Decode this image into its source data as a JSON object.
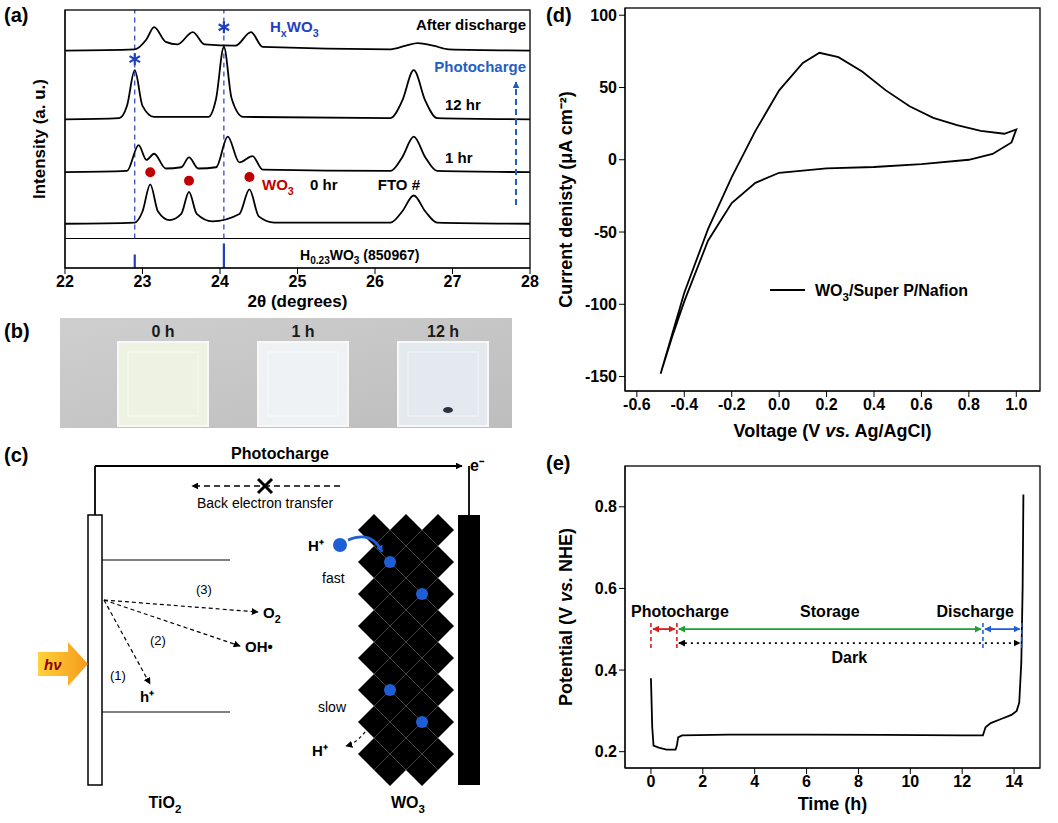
{
  "chart_data": [
    {
      "panel": "(a)",
      "type": "line",
      "x_label": "2θ (degrees)",
      "y_label": "Intensity (a. u.)",
      "xlim": [
        22,
        28
      ],
      "xticks": [
        22,
        23,
        24,
        25,
        26,
        27,
        28
      ],
      "ylim": [
        0,
        10.5
      ],
      "tick_labels": "x",
      "series": [
        {
          "name": "After discharge",
          "color": "#000000",
          "x": [
            22.0,
            22.9,
            23.05,
            23.15,
            23.3,
            23.45,
            23.65,
            23.8,
            24.2,
            24.4,
            24.55,
            26.2,
            26.4,
            26.55,
            26.75,
            26.95,
            28.0
          ],
          "values": [
            8.85,
            8.9,
            9.3,
            9.8,
            9.2,
            9.1,
            9.6,
            9.1,
            9.05,
            9.6,
            9.0,
            8.9,
            9.05,
            9.15,
            9.05,
            8.9,
            8.85
          ]
        },
        {
          "name": "12 hr",
          "color": "#000000",
          "x": [
            22.0,
            22.7,
            22.8,
            22.9,
            23.0,
            23.15,
            23.85,
            23.95,
            24.05,
            24.15,
            24.3,
            26.2,
            26.35,
            26.5,
            26.65,
            26.8,
            28.0
          ],
          "values": [
            6.05,
            6.1,
            6.6,
            8.05,
            6.6,
            6.15,
            6.15,
            6.9,
            9.0,
            6.9,
            6.15,
            6.1,
            6.8,
            8.05,
            6.8,
            6.1,
            6.05
          ]
        },
        {
          "name": "1 hr",
          "color": "#000000",
          "x": [
            22.0,
            22.8,
            22.95,
            23.05,
            23.15,
            23.3,
            23.5,
            23.6,
            23.72,
            23.95,
            24.1,
            24.25,
            24.42,
            24.55,
            26.2,
            26.35,
            26.5,
            26.65,
            26.8,
            28.0
          ],
          "values": [
            3.9,
            3.95,
            5.0,
            4.4,
            4.65,
            4.05,
            4.1,
            4.5,
            4.05,
            4.1,
            5.35,
            4.3,
            4.55,
            4.0,
            3.95,
            4.5,
            5.35,
            4.5,
            3.95,
            3.9
          ]
        },
        {
          "name": "0 hr",
          "color": "#000000",
          "x": [
            22.0,
            22.9,
            23.0,
            23.1,
            23.2,
            23.35,
            23.5,
            23.6,
            23.7,
            23.9,
            24.25,
            24.38,
            24.5,
            24.7,
            26.2,
            26.35,
            26.5,
            26.65,
            26.8,
            28.0
          ],
          "values": [
            1.8,
            1.85,
            2.3,
            3.4,
            2.3,
            1.95,
            2.2,
            3.1,
            2.2,
            1.9,
            2.2,
            3.2,
            2.1,
            1.85,
            1.85,
            2.3,
            2.95,
            2.3,
            1.85,
            1.8
          ]
        }
      ],
      "markers": [
        {
          "name": "WO3",
          "color": "#c00000",
          "marker": "circle",
          "x": [
            23.1,
            23.6,
            24.38
          ],
          "values": [
            3.9,
            3.55,
            3.7
          ]
        },
        {
          "name": "HxWO3",
          "color": "#1f3fbf",
          "marker": "asterisk",
          "x": [
            22.9,
            24.05
          ],
          "values": [
            8.5,
            9.8
          ]
        }
      ],
      "reference": {
        "name": "H0.23WO3 (850967)",
        "color": "#1f3fbf",
        "x": [
          22.9,
          24.05
        ],
        "values": [
          0.55,
          1.0
        ]
      },
      "separator": 1.2,
      "annotations": [
        {
          "text": "FTO #"
        },
        {
          "text": "Photocharge",
          "color": "#1f5fbf"
        }
      ]
    },
    {
      "panel": "(d)",
      "type": "line",
      "x_label": "Voltage (V vs. Ag/AgCl)",
      "y_label": "Current denisty (μA cm⁻²)",
      "xlim": [
        -0.65,
        1.1
      ],
      "xticks": [
        -0.6,
        -0.4,
        -0.2,
        {
          "value": 0,
          "label": "0.0"
        },
        0.2,
        0.4,
        0.6,
        0.8,
        {
          "value": 1,
          "label": "1.0"
        }
      ],
      "ylim": [
        -160,
        105
      ],
      "yticks": [
        -150,
        -100,
        -50,
        0,
        50,
        100
      ],
      "legend": "lower right",
      "series": [
        {
          "name": "WO3/Super P/Nafion",
          "color": "#000000",
          "x": [
            -0.5,
            -0.45,
            -0.4,
            -0.3,
            -0.2,
            -0.1,
            0.0,
            0.1,
            0.17,
            0.25,
            0.35,
            0.45,
            0.55,
            0.65,
            0.75,
            0.85,
            0.95,
            1.0,
            0.98,
            0.9,
            0.8,
            0.6,
            0.4,
            0.2,
            0.0,
            -0.1,
            -0.2,
            -0.3,
            -0.4,
            -0.45,
            -0.5
          ],
          "values": [
            -148,
            -120,
            -92,
            -48,
            -12,
            20,
            48,
            67,
            74,
            71,
            61,
            48,
            37,
            29,
            24,
            20,
            18,
            21,
            12,
            4,
            0,
            -3,
            -5,
            -6,
            -9,
            -16,
            -30,
            -56,
            -98,
            -122,
            -148
          ]
        }
      ]
    },
    {
      "panel": "(e)",
      "type": "line",
      "x_label": "Time (h)",
      "y_label": "Potential (V vs. NHE)",
      "xlim": [
        -1,
        15
      ],
      "xticks": [
        0,
        2,
        4,
        6,
        8,
        10,
        12,
        14
      ],
      "ylim": [
        0.16,
        0.9
      ],
      "yticks": [
        0.2,
        0.4,
        0.6,
        0.8
      ],
      "series": [
        {
          "color": "#000000",
          "x": [
            0,
            0.05,
            0.1,
            0.3,
            0.6,
            0.95,
            1.0,
            1.05,
            1.2,
            3,
            6,
            9,
            12,
            12.8,
            12.9,
            13.1,
            13.5,
            13.9,
            14.1,
            14.2,
            14.28,
            14.33,
            14.36
          ],
          "values": [
            0.38,
            0.26,
            0.215,
            0.21,
            0.205,
            0.205,
            0.215,
            0.235,
            0.24,
            0.242,
            0.242,
            0.241,
            0.24,
            0.24,
            0.26,
            0.27,
            0.28,
            0.29,
            0.3,
            0.32,
            0.42,
            0.6,
            0.83
          ]
        }
      ],
      "periods": [
        {
          "label": "Photocharge",
          "start": 0,
          "end": 1,
          "color": "#d62020"
        },
        {
          "label": "Storage",
          "start": 1,
          "end": 12.8,
          "color": "#1f9e3a"
        },
        {
          "label": "Discharge",
          "start": 12.8,
          "end": 14.3,
          "color": "#1f5fd6"
        },
        {
          "label": "Dark",
          "start": 1,
          "end": 14.3,
          "color": "#000000",
          "line_style": "dotted"
        }
      ]
    }
  ],
  "photo": {
    "label": "(b)",
    "samples": [
      "0 h",
      "1 h",
      "12 h"
    ]
  },
  "diagram": {
    "label": "(c)",
    "photocharge": "Photocharge",
    "electron": "e⁻",
    "back_transfer": "Back electron transfer",
    "light": "hν",
    "paths": [
      {
        "label": "(1)",
        "product": "h⁺"
      },
      {
        "label": "(2)",
        "product": "OH•"
      },
      {
        "label": "(3)",
        "product": "O2"
      }
    ],
    "proton": "H⁺",
    "fast": "fast",
    "slow": "slow",
    "electrodes": [
      "TiO2",
      "WO3"
    ]
  }
}
